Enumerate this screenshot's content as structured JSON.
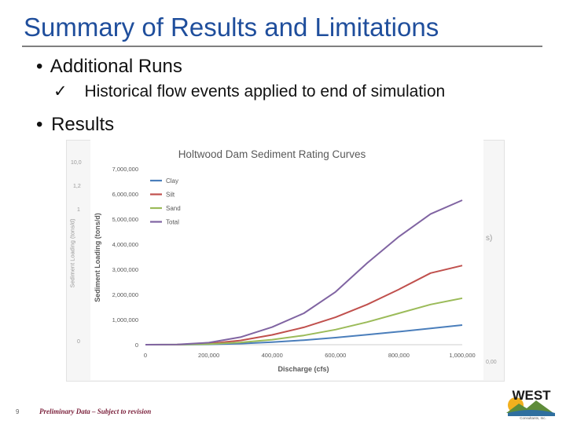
{
  "slide": {
    "title": "Summary of Results and Limitations",
    "bullets": [
      {
        "marker": "•",
        "text": "Additional Runs"
      },
      {
        "marker": "•",
        "text": "Results"
      }
    ],
    "subbullet": {
      "marker": "✓",
      "text": "Historical flow events applied to end of simulation"
    },
    "footer": {
      "page": "9",
      "text": "Preliminary Data – Subject to revision"
    },
    "logo": {
      "text": "WEST",
      "subtext": "Consultants, Inc."
    }
  },
  "background_chart_fragments": [
    "10,0",
    "1,2",
    "1",
    "Sediment Loading (tons/d)",
    "0",
    "s)",
    "0,00"
  ],
  "chart_data": {
    "type": "line",
    "title": "Holtwood Dam Sediment Rating Curves",
    "xlabel": "Discharge (cfs)",
    "ylabel": "Sediment Loading (tons/d)",
    "xlim": [
      0,
      1000000
    ],
    "ylim": [
      0,
      7000000
    ],
    "xticks": [
      0,
      200000,
      400000,
      600000,
      800000,
      1000000
    ],
    "xtick_labels": [
      "0",
      "200,000",
      "400,000",
      "600,000",
      "800,000",
      "1,000,000"
    ],
    "yticks": [
      0,
      1000000,
      2000000,
      3000000,
      4000000,
      5000000,
      6000000,
      7000000
    ],
    "ytick_labels": [
      "0",
      "1,000,000",
      "2,000,000",
      "3,000,000",
      "4,000,000",
      "5,000,000",
      "6,000,000",
      "7,000,000"
    ],
    "x": [
      0,
      100000,
      200000,
      300000,
      400000,
      500000,
      600000,
      700000,
      800000,
      900000,
      1000000
    ],
    "series": [
      {
        "name": "Clay",
        "color": "#4a7ebb",
        "values": [
          0,
          1000,
          12000,
          45000,
          100000,
          180000,
          280000,
          400000,
          520000,
          650000,
          780000
        ]
      },
      {
        "name": "Silt",
        "color": "#c0504d",
        "values": [
          0,
          3000,
          45000,
          170000,
          390000,
          690000,
          1090000,
          1600000,
          2200000,
          2850000,
          3150000
        ]
      },
      {
        "name": "Sand",
        "color": "#9bbb59",
        "values": [
          0,
          2000,
          25000,
          90000,
          200000,
          370000,
          600000,
          900000,
          1250000,
          1600000,
          1850000
        ]
      },
      {
        "name": "Total",
        "color": "#8064a2",
        "values": [
          0,
          5000,
          80000,
          300000,
          700000,
          1250000,
          2100000,
          3250000,
          4300000,
          5200000,
          5750000
        ]
      }
    ],
    "legend_position": "top-left",
    "grid": false
  }
}
